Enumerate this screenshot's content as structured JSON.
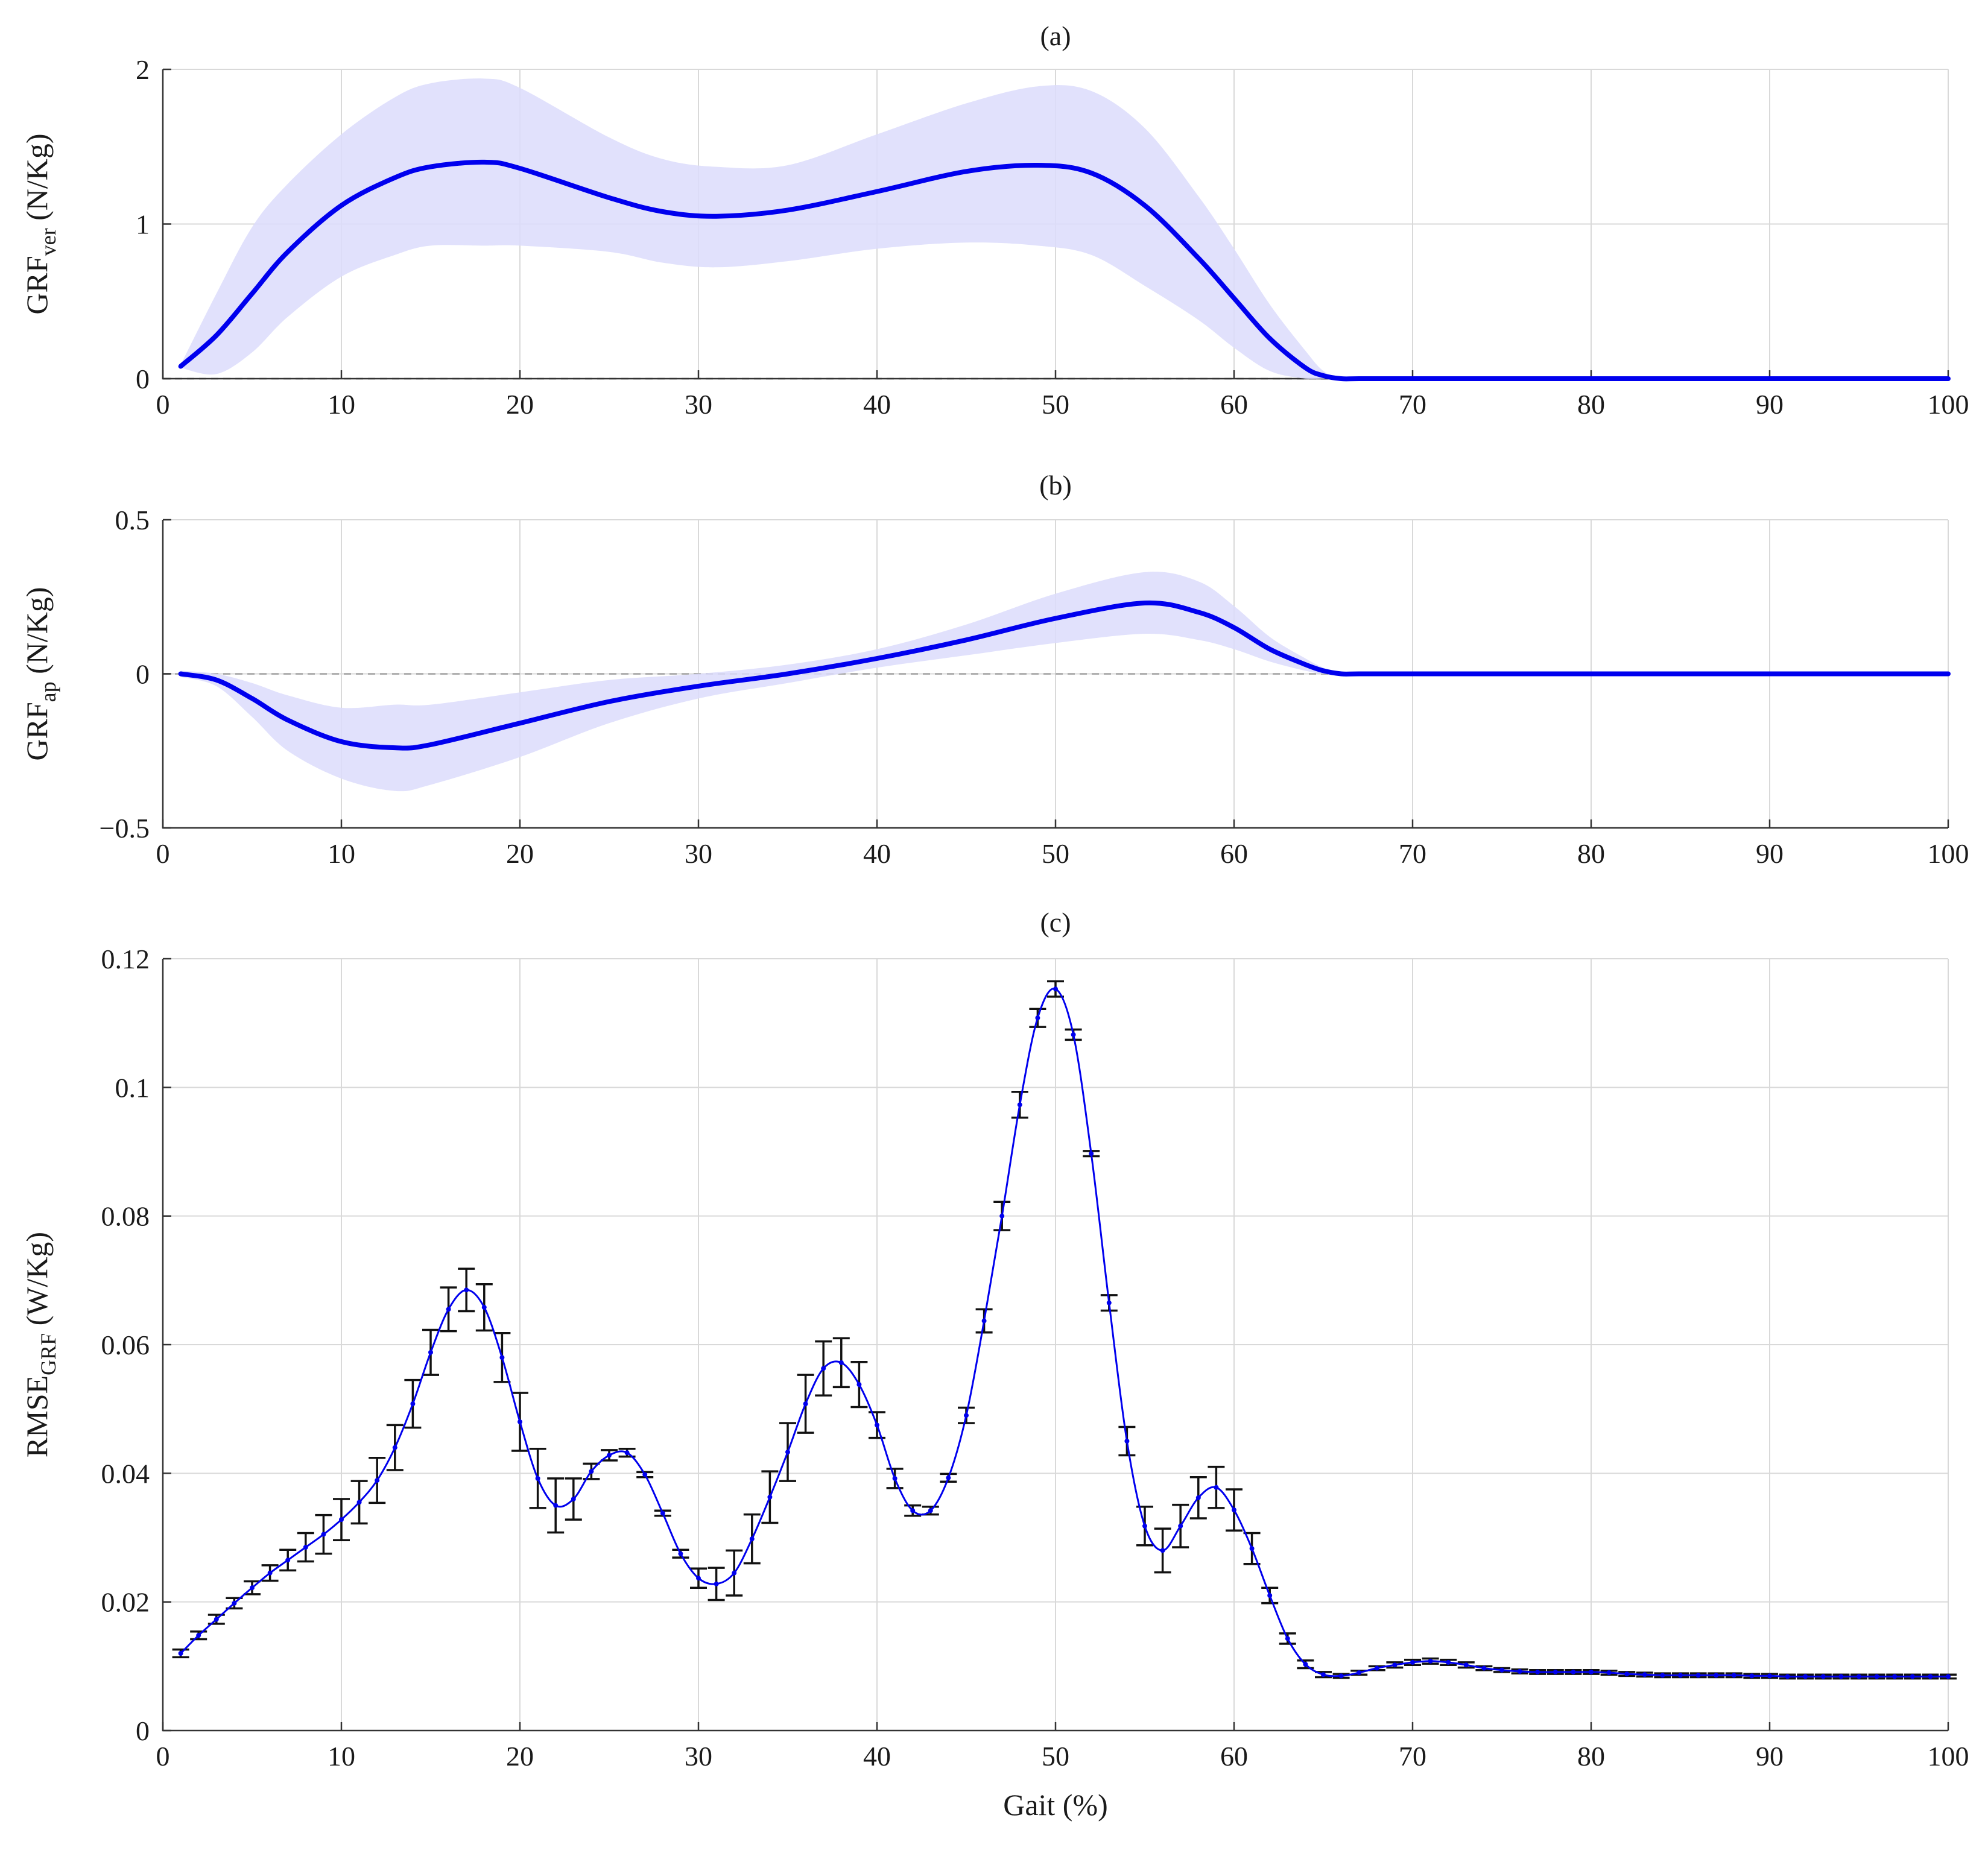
{
  "colors": {
    "line": "#0000ee",
    "band": "#dcdcfb",
    "errorbar": "#111111"
  },
  "chart_data": [
    {
      "id": "a",
      "type": "line",
      "title": "(a)",
      "ylabel_main": "GRF",
      "ylabel_sub": "ver",
      "ylabel_units": "(N/Kg)",
      "xlabel": "",
      "xlim": [
        0,
        100
      ],
      "ylim": [
        0,
        2
      ],
      "xticks": [
        0,
        10,
        20,
        30,
        40,
        50,
        60,
        70,
        80,
        90,
        100
      ],
      "yticks": [
        0,
        1,
        2
      ],
      "ytick_labels": [
        "0",
        "1",
        "2"
      ],
      "grid": true,
      "series": [
        {
          "name": "mean",
          "x": [
            1,
            3,
            5,
            7,
            10,
            13,
            15,
            18,
            20,
            25,
            28,
            31,
            35,
            40,
            45,
            49,
            52,
            55,
            58,
            60,
            62,
            64,
            65,
            66,
            67,
            70,
            80,
            90,
            100
          ],
          "values": [
            0.08,
            0.28,
            0.55,
            0.82,
            1.12,
            1.3,
            1.37,
            1.4,
            1.36,
            1.17,
            1.08,
            1.05,
            1.09,
            1.21,
            1.34,
            1.38,
            1.33,
            1.12,
            0.78,
            0.52,
            0.26,
            0.07,
            0.02,
            0.0,
            0.0,
            0.0,
            0.0,
            0.0,
            0.0
          ],
          "upper": [
            0.09,
            0.55,
            0.98,
            1.26,
            1.58,
            1.82,
            1.91,
            1.94,
            1.88,
            1.56,
            1.42,
            1.37,
            1.38,
            1.58,
            1.78,
            1.89,
            1.86,
            1.62,
            1.18,
            0.84,
            0.48,
            0.18,
            0.05,
            0.0,
            0.0,
            0.0,
            0.0,
            0.0,
            0.0
          ],
          "lower": [
            0.07,
            0.03,
            0.17,
            0.4,
            0.66,
            0.8,
            0.86,
            0.86,
            0.86,
            0.82,
            0.75,
            0.72,
            0.76,
            0.84,
            0.88,
            0.86,
            0.8,
            0.6,
            0.38,
            0.2,
            0.05,
            0.0,
            0.0,
            0.0,
            0.0,
            0.0,
            0.0,
            0.0,
            0.0
          ]
        }
      ]
    },
    {
      "id": "b",
      "type": "line",
      "title": "(b)",
      "ylabel_main": "GRF",
      "ylabel_sub": "ap",
      "ylabel_units": "(N/Kg)",
      "xlabel": "",
      "xlim": [
        0,
        100
      ],
      "ylim": [
        -0.5,
        0.5
      ],
      "xticks": [
        0,
        10,
        20,
        30,
        40,
        50,
        60,
        70,
        80,
        90,
        100
      ],
      "yticks": [
        -0.5,
        0,
        0.5
      ],
      "ytick_labels": [
        "−0.5",
        "0",
        "0.5"
      ],
      "grid": true,
      "series": [
        {
          "name": "mean",
          "x": [
            1,
            3,
            5,
            7,
            10,
            13,
            15,
            20,
            25,
            30,
            35,
            40,
            45,
            50,
            55,
            58,
            60,
            62,
            64,
            65,
            66,
            67,
            70,
            80,
            90,
            100
          ],
          "values": [
            0.0,
            -0.02,
            -0.08,
            -0.15,
            -0.22,
            -0.24,
            -0.23,
            -0.16,
            -0.09,
            -0.04,
            0.0,
            0.05,
            0.11,
            0.18,
            0.23,
            0.2,
            0.15,
            0.08,
            0.03,
            0.01,
            0.0,
            0.0,
            0.0,
            0.0,
            0.0,
            0.0
          ],
          "upper": [
            0.01,
            0.0,
            -0.03,
            -0.07,
            -0.11,
            -0.1,
            -0.1,
            -0.06,
            -0.02,
            0.0,
            0.03,
            0.08,
            0.16,
            0.26,
            0.33,
            0.3,
            0.22,
            0.12,
            0.05,
            0.02,
            0.0,
            0.0,
            0.0,
            0.0,
            0.0,
            0.0
          ],
          "lower": [
            -0.01,
            -0.04,
            -0.14,
            -0.25,
            -0.34,
            -0.38,
            -0.36,
            -0.27,
            -0.16,
            -0.08,
            -0.03,
            0.02,
            0.06,
            0.1,
            0.13,
            0.11,
            0.08,
            0.04,
            0.01,
            0.0,
            0.0,
            0.0,
            0.0,
            0.0,
            0.0,
            0.0
          ]
        }
      ]
    },
    {
      "id": "c",
      "type": "line",
      "title": "(c)",
      "ylabel_main": "RMSE",
      "ylabel_sub": "GRF",
      "ylabel_units": "(W/Kg)",
      "xlabel": "Gait (%)",
      "xlim": [
        0,
        100
      ],
      "ylim": [
        0,
        0.12
      ],
      "xticks": [
        0,
        10,
        20,
        30,
        40,
        50,
        60,
        70,
        80,
        90,
        100
      ],
      "yticks": [
        0,
        0.02,
        0.04,
        0.06,
        0.08,
        0.1,
        0.12
      ],
      "ytick_labels": [
        "0",
        "0.02",
        "0.04",
        "0.06",
        "0.08",
        "0.1",
        "0.12"
      ],
      "grid": true,
      "series": [
        {
          "name": "RMSE",
          "x": [
            1,
            2,
            3,
            4,
            5,
            6,
            7,
            8,
            9,
            10,
            11,
            12,
            13,
            14,
            15,
            16,
            17,
            18,
            19,
            20,
            21,
            22,
            23,
            24,
            25,
            26,
            27,
            28,
            29,
            30,
            31,
            32,
            33,
            34,
            35,
            36,
            37,
            38,
            39,
            40,
            41,
            42,
            43,
            44,
            45,
            46,
            47,
            48,
            49,
            50,
            51,
            52,
            53,
            54,
            55,
            56,
            57,
            58,
            59,
            60,
            61,
            62,
            63,
            64,
            65,
            66,
            67,
            68,
            69,
            70,
            71,
            72,
            73,
            74,
            75,
            76,
            77,
            78,
            79,
            80,
            81,
            82,
            83,
            84,
            85,
            86,
            87,
            88,
            89,
            90,
            91,
            92,
            93,
            94,
            95,
            96,
            97,
            98,
            99,
            100
          ],
          "values": [
            0.012,
            0.0148,
            0.0173,
            0.0198,
            0.0222,
            0.0245,
            0.0265,
            0.0285,
            0.0305,
            0.0328,
            0.0355,
            0.0389,
            0.044,
            0.0508,
            0.0588,
            0.0655,
            0.0685,
            0.0658,
            0.058,
            0.048,
            0.0392,
            0.035,
            0.036,
            0.0403,
            0.0428,
            0.0432,
            0.0398,
            0.0338,
            0.0275,
            0.0237,
            0.0228,
            0.0245,
            0.0298,
            0.0363,
            0.0433,
            0.0508,
            0.0563,
            0.0572,
            0.0538,
            0.0475,
            0.0392,
            0.0342,
            0.0342,
            0.0393,
            0.049,
            0.0637,
            0.08,
            0.0973,
            0.1108,
            0.1153,
            0.1082,
            0.0897,
            0.0665,
            0.045,
            0.0318,
            0.028,
            0.0318,
            0.0362,
            0.0378,
            0.0343,
            0.0283,
            0.021,
            0.0143,
            0.0103,
            0.0087,
            0.0085,
            0.009,
            0.0097,
            0.0102,
            0.0106,
            0.0108,
            0.0106,
            0.0102,
            0.0097,
            0.0094,
            0.0092,
            0.0091,
            0.0091,
            0.0091,
            0.0091,
            0.009,
            0.0088,
            0.0087,
            0.0086,
            0.0086,
            0.0086,
            0.0086,
            0.0086,
            0.0085,
            0.0085,
            0.0084,
            0.0084,
            0.0084,
            0.0084,
            0.0084,
            0.0084,
            0.0084,
            0.0084,
            0.0084,
            0.0084
          ],
          "error": [
            0.0006,
            0.0006,
            0.0007,
            0.0008,
            0.001,
            0.0012,
            0.0016,
            0.0022,
            0.003,
            0.0032,
            0.0033,
            0.0035,
            0.0035,
            0.0037,
            0.0035,
            0.0034,
            0.0033,
            0.0036,
            0.0038,
            0.0045,
            0.0046,
            0.0042,
            0.0032,
            0.0012,
            0.0008,
            0.0006,
            0.0004,
            0.0004,
            0.0006,
            0.0015,
            0.0025,
            0.0035,
            0.0038,
            0.004,
            0.0045,
            0.0045,
            0.0042,
            0.0038,
            0.0035,
            0.002,
            0.0015,
            0.0008,
            0.0006,
            0.0006,
            0.0012,
            0.0018,
            0.0022,
            0.002,
            0.0014,
            0.0012,
            0.0008,
            0.0004,
            0.0012,
            0.0022,
            0.003,
            0.0034,
            0.0033,
            0.0032,
            0.0032,
            0.0032,
            0.0024,
            0.0012,
            0.0008,
            0.0006,
            0.0004,
            0.0003,
            0.0003,
            0.0003,
            0.0004,
            0.0004,
            0.0004,
            0.0004,
            0.0004,
            0.0003,
            0.0003,
            0.0003,
            0.0003,
            0.0003,
            0.0003,
            0.0003,
            0.0003,
            0.0003,
            0.0003,
            0.0003,
            0.0003,
            0.0003,
            0.0003,
            0.0003,
            0.0003,
            0.0003,
            0.0003,
            0.0003,
            0.0003,
            0.0003,
            0.0003,
            0.0003,
            0.0003,
            0.0003,
            0.0003,
            0.0003
          ]
        }
      ]
    }
  ]
}
